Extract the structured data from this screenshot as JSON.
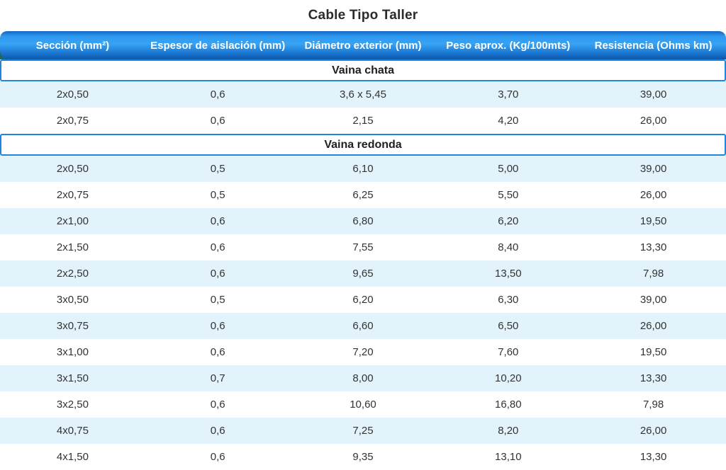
{
  "title": "Cable Tipo Taller",
  "colors": {
    "header_gradient_top": "#2e9af0",
    "header_gradient_bottom": "#0f57a8",
    "header_text": "#ffffff",
    "section_border": "#1e86dd",
    "row_alt_background": "#e2f3fc",
    "ribbon_fold": "#1b6a63",
    "title_text": "#2b2b2b",
    "cell_text": "#333333"
  },
  "chart_data": {
    "type": "table",
    "title": "Cable Tipo Taller",
    "columns": [
      "Sección (mm²)",
      "Espesor de aislación (mm)",
      "Diámetro exterior (mm)",
      "Peso aprox. (Kg/100mts)",
      "Resistencia (Ohms km)"
    ],
    "sections": [
      {
        "label": "Vaina chata",
        "rows": [
          [
            "2x0,50",
            "0,6",
            "3,6 x 5,45",
            "3,70",
            "39,00"
          ],
          [
            "2x0,75",
            "0,6",
            "2,15",
            "4,20",
            "26,00"
          ]
        ]
      },
      {
        "label": "Vaina redonda",
        "rows": [
          [
            "2x0,50",
            "0,5",
            "6,10",
            "5,00",
            "39,00"
          ],
          [
            "2x0,75",
            "0,5",
            "6,25",
            "5,50",
            "26,00"
          ],
          [
            "2x1,00",
            "0,6",
            "6,80",
            "6,20",
            "19,50"
          ],
          [
            "2x1,50",
            "0,6",
            "7,55",
            "8,40",
            "13,30"
          ],
          [
            "2x2,50",
            "0,6",
            "9,65",
            "13,50",
            "7,98"
          ],
          [
            "3x0,50",
            "0,5",
            "6,20",
            "6,30",
            "39,00"
          ],
          [
            "3x0,75",
            "0,6",
            "6,60",
            "6,50",
            "26,00"
          ],
          [
            "3x1,00",
            "0,6",
            "7,20",
            "7,60",
            "19,50"
          ],
          [
            "3x1,50",
            "0,7",
            "8,00",
            "10,20",
            "13,30"
          ],
          [
            "3x2,50",
            "0,6",
            "10,60",
            "16,80",
            "7,98"
          ],
          [
            "4x0,75",
            "0,6",
            "7,25",
            "8,20",
            "26,00"
          ],
          [
            "4x1,50",
            "0,6",
            "9,35",
            "13,10",
            "13,30"
          ]
        ]
      }
    ]
  }
}
